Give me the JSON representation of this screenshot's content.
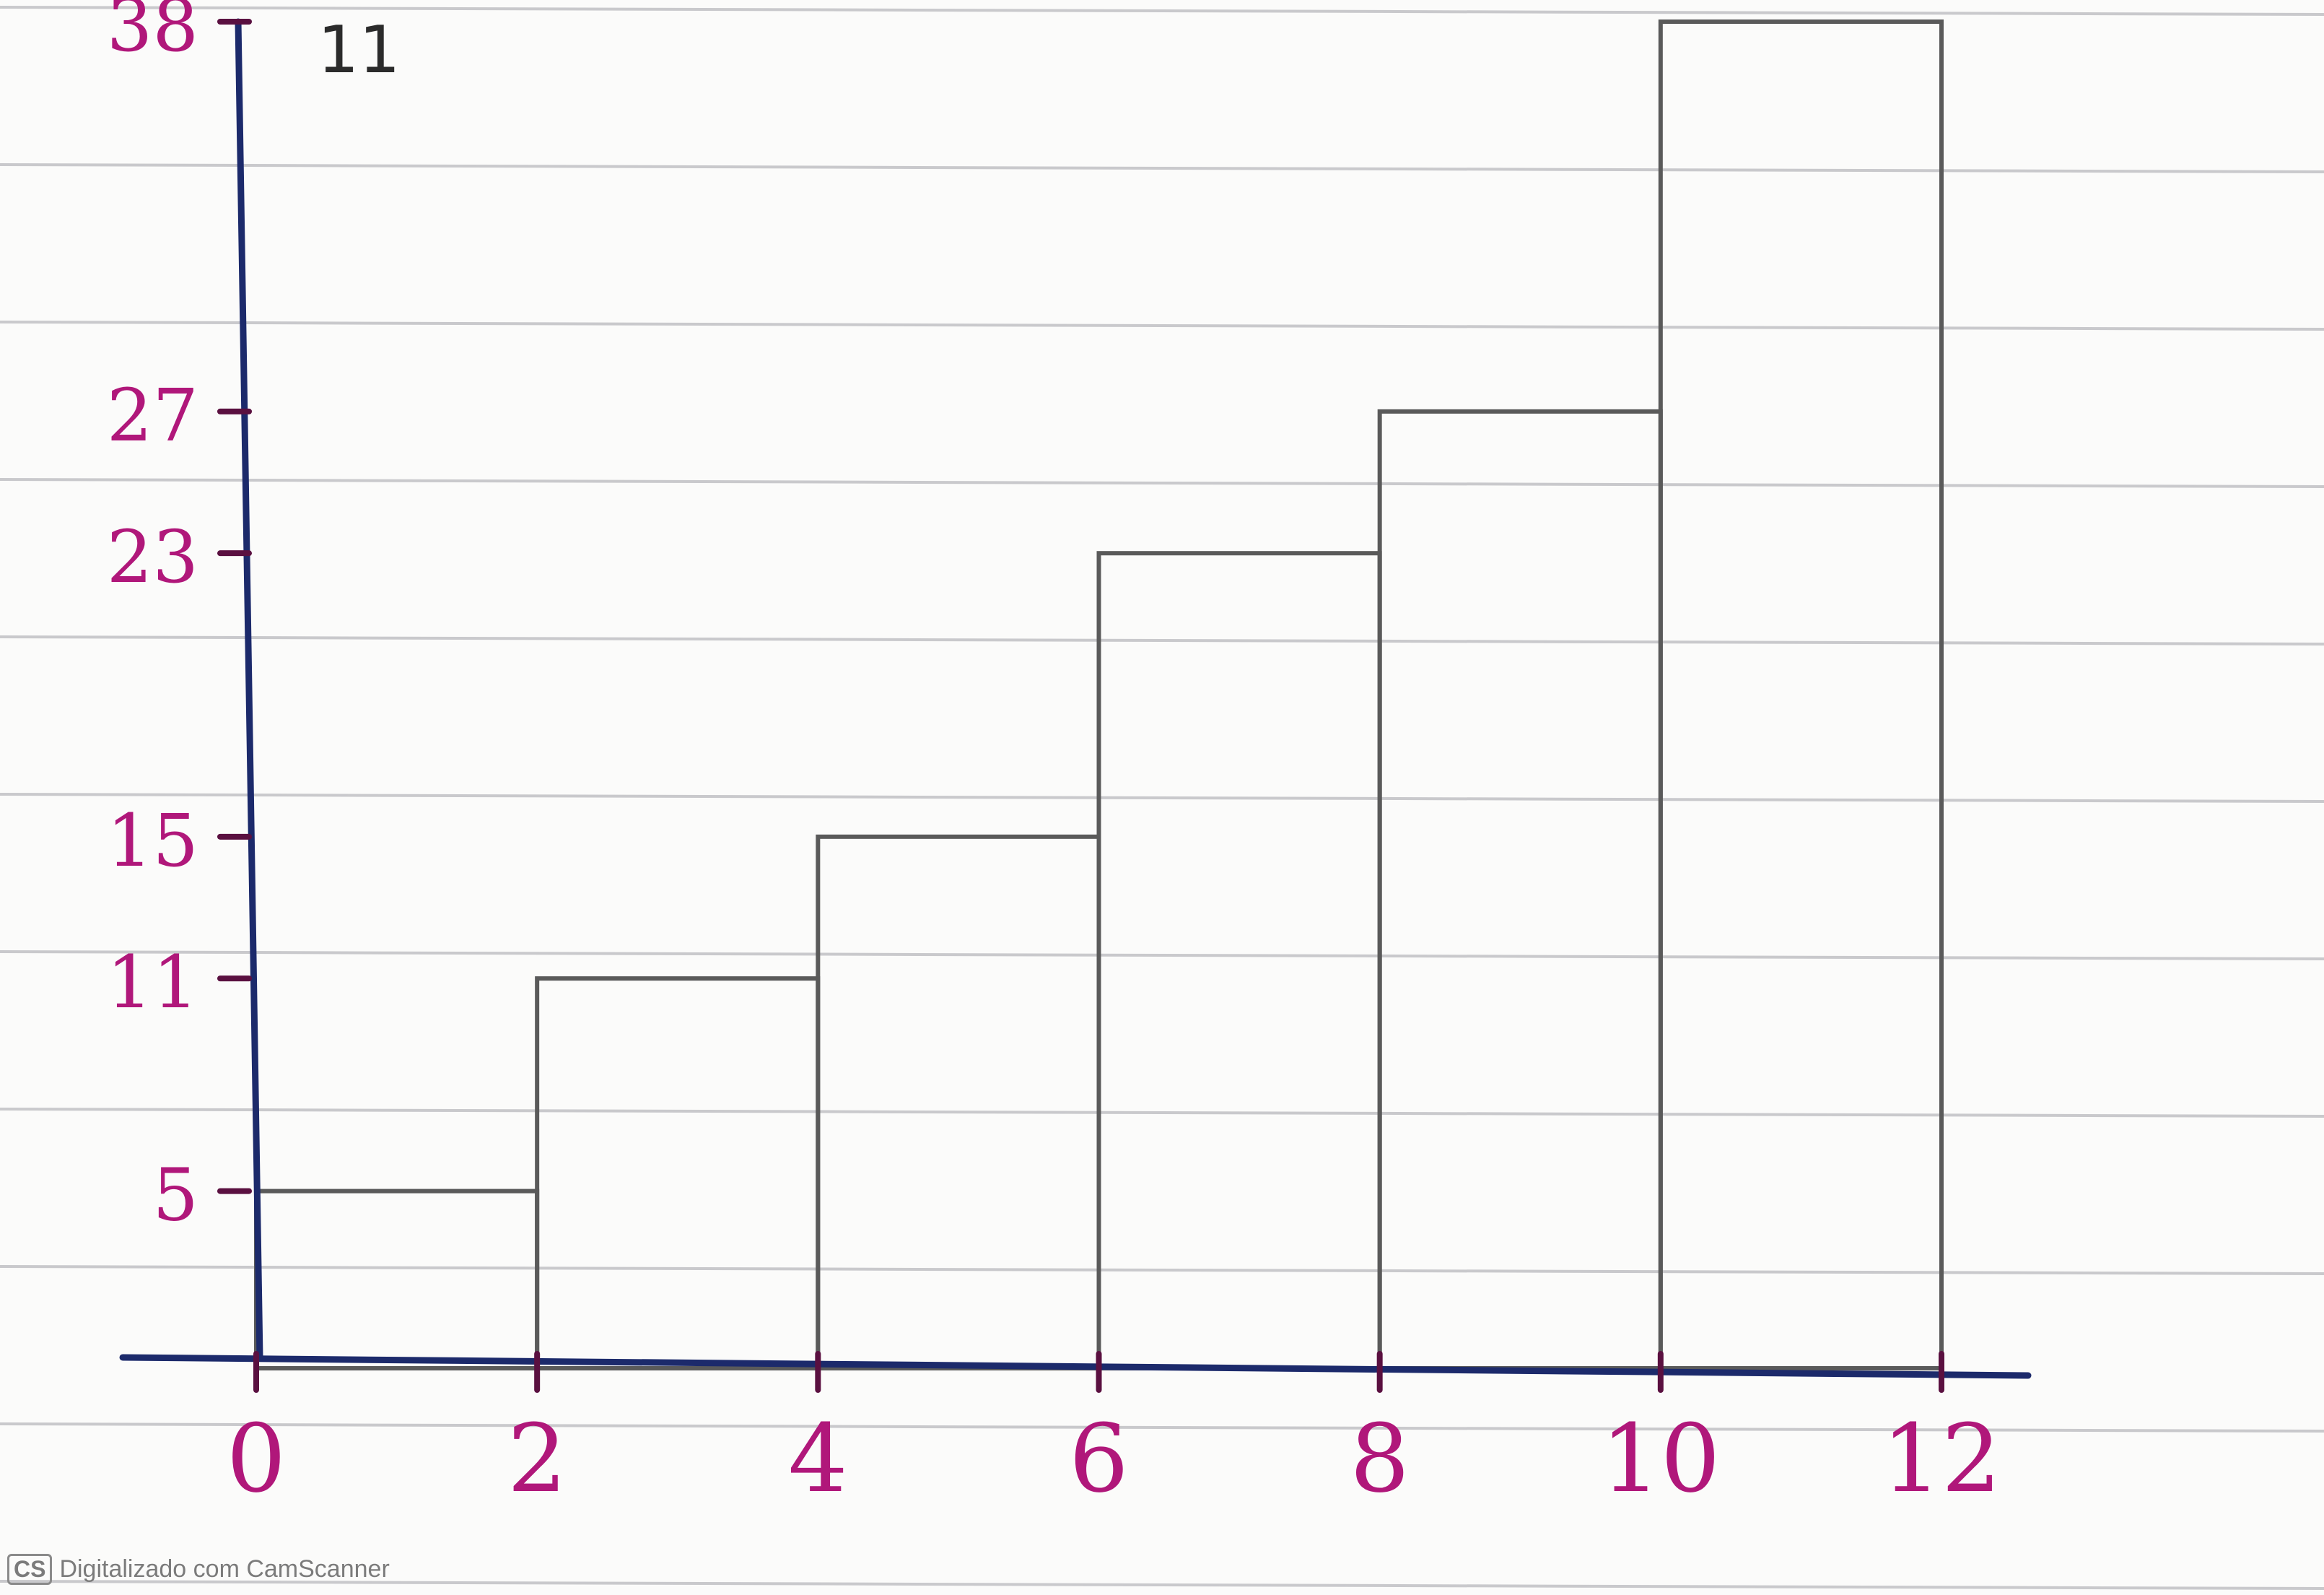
{
  "chart_data": {
    "type": "bar",
    "style": "histogram",
    "title": "",
    "xlabel": "",
    "ylabel": "",
    "bins": [
      {
        "start": 0,
        "end": 2,
        "value": 5
      },
      {
        "start": 2,
        "end": 4,
        "value": 11
      },
      {
        "start": 4,
        "end": 6,
        "value": 15
      },
      {
        "start": 6,
        "end": 8,
        "value": 23
      },
      {
        "start": 8,
        "end": 10,
        "value": 27
      },
      {
        "start": 10,
        "end": 12,
        "value": 38
      }
    ],
    "x_ticks": [
      "0",
      "2",
      "4",
      "6",
      "8",
      "10",
      "12"
    ],
    "y_ticks": [
      "5",
      "11",
      "15",
      "23",
      "27",
      "38"
    ],
    "ylim": [
      0,
      38
    ],
    "xlim": [
      0,
      12
    ],
    "grid": true,
    "colors": {
      "ink": "#b0177a",
      "pencil": "#5a5a5a",
      "axis": "#1c2a6b",
      "paper_rule": "#c9c9cc"
    }
  },
  "annotations": {
    "top_note": "11"
  },
  "watermark": {
    "badge": "CS",
    "text": "Digitalizado com CamScanner"
  }
}
